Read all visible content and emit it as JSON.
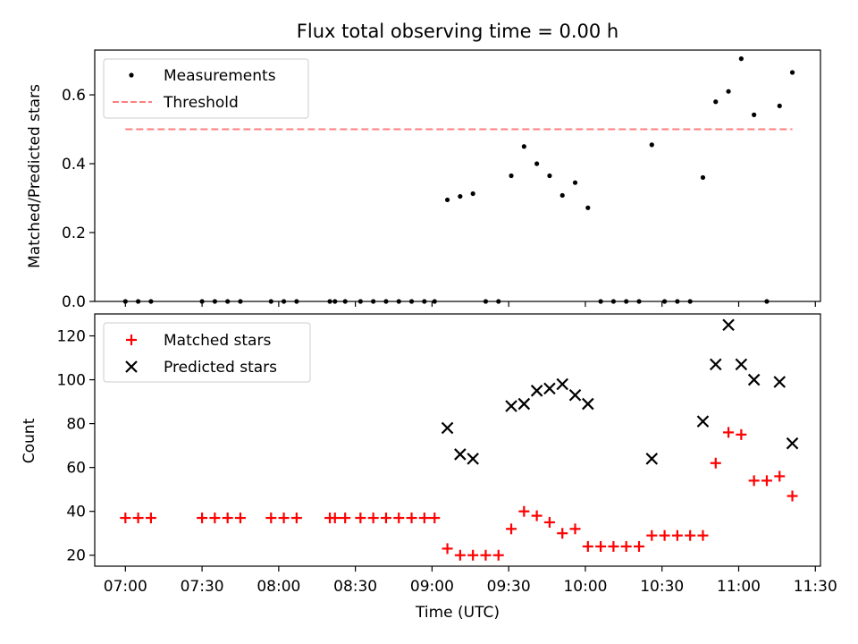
{
  "chart_data": [
    {
      "type": "scatter",
      "title": "Flux total observing time = 0.00 h",
      "xlabel": "",
      "ylabel": "Matched/Predicted stars",
      "xlim": [
        "06:48",
        "11:32"
      ],
      "ylim": [
        0,
        0.73
      ],
      "y_ticks": [
        0.0,
        0.2,
        0.4,
        0.6
      ],
      "y_tick_labels": [
        "0.0",
        "0.2",
        "0.4",
        "0.6"
      ],
      "grid": false,
      "legend": "top-left",
      "series": [
        {
          "name": "Measurements",
          "marker": "dot",
          "color": "#000000",
          "points": [
            [
              "07:00",
              0
            ],
            [
              "07:05",
              0
            ],
            [
              "07:10",
              0
            ],
            [
              "07:30",
              0
            ],
            [
              "07:35",
              0
            ],
            [
              "07:40",
              0
            ],
            [
              "07:45",
              0
            ],
            [
              "07:57",
              0
            ],
            [
              "08:02",
              0
            ],
            [
              "08:07",
              0
            ],
            [
              "08:20",
              0
            ],
            [
              "08:22",
              0
            ],
            [
              "08:26",
              0
            ],
            [
              "08:32",
              0
            ],
            [
              "08:37",
              0
            ],
            [
              "08:42",
              0
            ],
            [
              "08:47",
              0
            ],
            [
              "08:52",
              0
            ],
            [
              "08:57",
              0
            ],
            [
              "09:01",
              0
            ],
            [
              "09:06",
              0.295
            ],
            [
              "09:11",
              0.305
            ],
            [
              "09:16",
              0.313
            ],
            [
              "09:21",
              0
            ],
            [
              "09:26",
              0
            ],
            [
              "09:31",
              0.365
            ],
            [
              "09:36",
              0.45
            ],
            [
              "09:41",
              0.4
            ],
            [
              "09:46",
              0.365
            ],
            [
              "09:51",
              0.308
            ],
            [
              "09:56",
              0.345
            ],
            [
              "10:01",
              0.272
            ],
            [
              "10:06",
              0
            ],
            [
              "10:11",
              0
            ],
            [
              "10:16",
              0
            ],
            [
              "10:21",
              0
            ],
            [
              "10:26",
              0.455
            ],
            [
              "10:31",
              0
            ],
            [
              "10:36",
              0
            ],
            [
              "10:41",
              0
            ],
            [
              "10:46",
              0.36
            ],
            [
              "10:51",
              0.58
            ],
            [
              "10:56",
              0.61
            ],
            [
              "11:01",
              0.705
            ],
            [
              "11:06",
              0.542
            ],
            [
              "11:11",
              0
            ],
            [
              "11:16",
              0.568
            ],
            [
              "11:21",
              0.665
            ]
          ]
        },
        {
          "name": "Threshold",
          "style": "dashed",
          "color": "#ff7f7f",
          "points": [
            [
              "07:00",
              0.5
            ],
            [
              "11:21",
              0.5
            ]
          ]
        }
      ]
    },
    {
      "type": "scatter",
      "title": "",
      "xlabel": "Time (UTC)",
      "ylabel": "Count",
      "xlim": [
        "06:48",
        "11:32"
      ],
      "ylim": [
        15,
        130
      ],
      "y_ticks": [
        20,
        40,
        60,
        80,
        100,
        120
      ],
      "y_tick_labels": [
        "20",
        "40",
        "60",
        "80",
        "100",
        "120"
      ],
      "x_ticks": [
        "07:00",
        "07:30",
        "08:00",
        "08:30",
        "09:00",
        "09:30",
        "10:00",
        "10:30",
        "11:00",
        "11:30"
      ],
      "x_tick_labels": [
        "07:00",
        "07:30",
        "08:00",
        "08:30",
        "09:00",
        "09:30",
        "10:00",
        "10:30",
        "11:00",
        "11:30"
      ],
      "grid": false,
      "legend": "top-left",
      "series": [
        {
          "name": "Matched stars",
          "marker": "plus",
          "color": "#ff0000",
          "points": [
            [
              "07:00",
              37
            ],
            [
              "07:05",
              37
            ],
            [
              "07:10",
              37
            ],
            [
              "07:30",
              37
            ],
            [
              "07:35",
              37
            ],
            [
              "07:40",
              37
            ],
            [
              "07:45",
              37
            ],
            [
              "07:57",
              37
            ],
            [
              "08:02",
              37
            ],
            [
              "08:07",
              37
            ],
            [
              "08:20",
              37
            ],
            [
              "08:22",
              37
            ],
            [
              "08:26",
              37
            ],
            [
              "08:32",
              37
            ],
            [
              "08:37",
              37
            ],
            [
              "08:42",
              37
            ],
            [
              "08:47",
              37
            ],
            [
              "08:52",
              37
            ],
            [
              "08:57",
              37
            ],
            [
              "09:01",
              37
            ],
            [
              "09:06",
              23
            ],
            [
              "09:11",
              20
            ],
            [
              "09:16",
              20
            ],
            [
              "09:21",
              20
            ],
            [
              "09:26",
              20
            ],
            [
              "09:31",
              32
            ],
            [
              "09:36",
              40
            ],
            [
              "09:41",
              38
            ],
            [
              "09:46",
              35
            ],
            [
              "09:51",
              30
            ],
            [
              "09:56",
              32
            ],
            [
              "10:01",
              24
            ],
            [
              "10:06",
              24
            ],
            [
              "10:11",
              24
            ],
            [
              "10:16",
              24
            ],
            [
              "10:21",
              24
            ],
            [
              "10:26",
              29
            ],
            [
              "10:31",
              29
            ],
            [
              "10:36",
              29
            ],
            [
              "10:41",
              29
            ],
            [
              "10:46",
              29
            ],
            [
              "10:51",
              62
            ],
            [
              "10:56",
              76
            ],
            [
              "11:01",
              75
            ],
            [
              "11:06",
              54
            ],
            [
              "11:11",
              54
            ],
            [
              "11:16",
              56
            ],
            [
              "11:21",
              47
            ]
          ]
        },
        {
          "name": "Predicted stars",
          "marker": "x",
          "color": "#000000",
          "points": [
            [
              "09:06",
              78
            ],
            [
              "09:11",
              66
            ],
            [
              "09:16",
              64
            ],
            [
              "09:31",
              88
            ],
            [
              "09:36",
              89
            ],
            [
              "09:41",
              95
            ],
            [
              "09:46",
              96
            ],
            [
              "09:51",
              98
            ],
            [
              "09:56",
              93
            ],
            [
              "10:01",
              89
            ],
            [
              "10:26",
              64
            ],
            [
              "10:46",
              81
            ],
            [
              "10:51",
              107
            ],
            [
              "10:56",
              125
            ],
            [
              "11:01",
              107
            ],
            [
              "11:06",
              100
            ],
            [
              "11:16",
              99
            ],
            [
              "11:21",
              71
            ]
          ]
        }
      ]
    }
  ]
}
